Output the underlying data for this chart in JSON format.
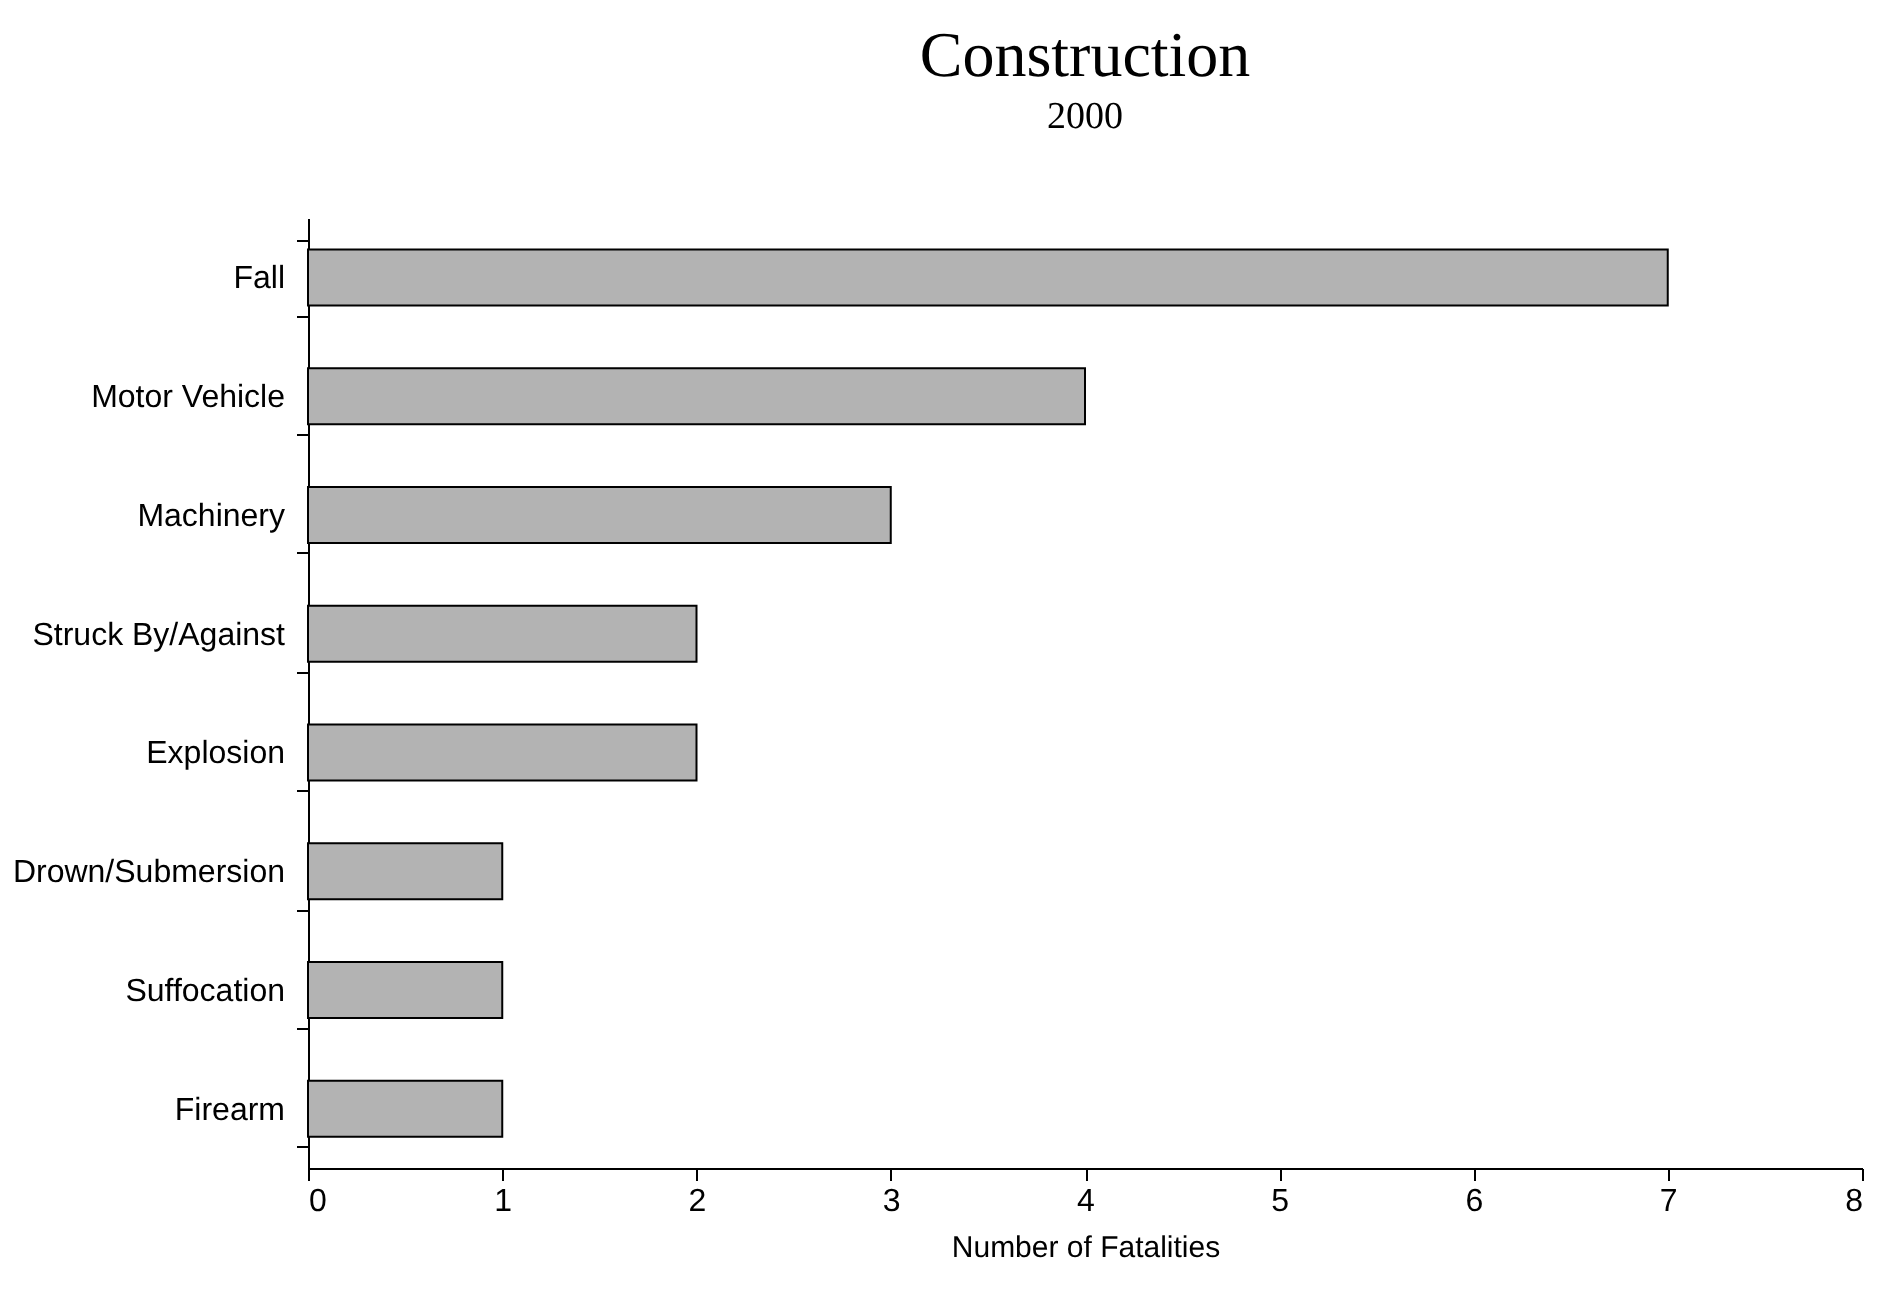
{
  "chart_data": {
    "type": "bar",
    "orientation": "horizontal",
    "title": "Construction",
    "subtitle": "2000",
    "xlabel": "Number of Fatalities",
    "categories": [
      "Fall",
      "Motor Vehicle",
      "Machinery",
      "Struck By/Against",
      "Explosion",
      "Drown/Submersion",
      "Suffocation",
      "Firearm"
    ],
    "values": [
      7,
      4,
      3,
      2,
      2,
      1,
      1,
      1
    ],
    "color": "#b3b3b3",
    "xlim": [
      0,
      8
    ],
    "xticks": [
      0,
      1,
      2,
      3,
      4,
      5,
      6,
      7,
      8
    ],
    "grid": false
  }
}
